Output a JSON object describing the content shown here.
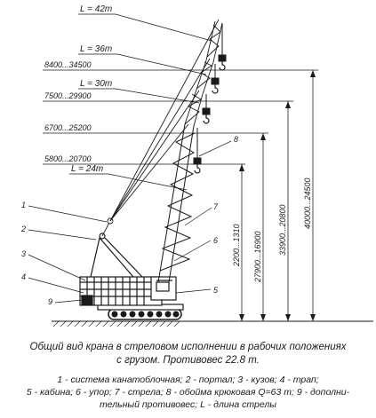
{
  "boom_lengths": [
    "L = 42т",
    "L = 36т",
    "L = 30т",
    "L = 24т"
  ],
  "hook_ranges": [
    "8400...34500",
    "7500...29900",
    "6700...25200",
    "5800...20700"
  ],
  "heights": [
    "40000...24500",
    "33900...20800",
    "27900...16900",
    "2200...1310"
  ],
  "callouts": [
    "1",
    "2",
    "3",
    "4",
    "5",
    "6",
    "7",
    "8",
    "9"
  ],
  "caption": {
    "line1": "Общий вид крана в стреловом исполнении в рабочих положениях",
    "line2": "с грузом. Противовес 22.8 т."
  },
  "legend": {
    "line1": "1 - система канатоблочная; 2 - портал; 3 - кузов; 4 - трап;",
    "line2": "5 - кабина; 6 - упор; 7 - стрела; 8 - обойма крюковая Q=63 т; 9 - дополни-",
    "line3": "тельный противовес; L - длина стрелы"
  },
  "colors": {
    "ink": "#1a1a1a",
    "background": "#ffffff"
  }
}
